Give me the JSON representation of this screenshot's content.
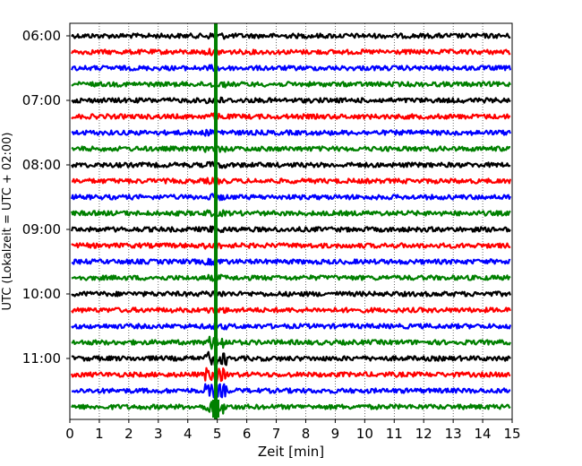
{
  "chart_data": {
    "type": "line",
    "xlabel": "Zeit  [min]",
    "ylabel": "UTC (Lokalzeit = UTC + 02:00)",
    "xlim": [
      0,
      15
    ],
    "x_ticks": [
      "0",
      "1",
      "2",
      "3",
      "4",
      "5",
      "6",
      "7",
      "8",
      "9",
      "10",
      "11",
      "12",
      "13",
      "14",
      "15"
    ],
    "y_ticks": [
      "06:00",
      "07:00",
      "08:00",
      "09:00",
      "10:00",
      "11:00"
    ],
    "grid": "vertical dotted",
    "trace_interval_min": 15,
    "first_trace": "06:00",
    "colors": [
      "#000000",
      "#ff0000",
      "#0000ff",
      "#008000"
    ],
    "traces": [
      {
        "start": "06:00",
        "color": "#000000"
      },
      {
        "start": "06:15",
        "color": "#ff0000"
      },
      {
        "start": "06:30",
        "color": "#0000ff"
      },
      {
        "start": "06:45",
        "color": "#008000"
      },
      {
        "start": "07:00",
        "color": "#000000"
      },
      {
        "start": "07:15",
        "color": "#ff0000"
      },
      {
        "start": "07:30",
        "color": "#0000ff"
      },
      {
        "start": "07:45",
        "color": "#008000"
      },
      {
        "start": "08:00",
        "color": "#000000"
      },
      {
        "start": "08:15",
        "color": "#ff0000"
      },
      {
        "start": "08:30",
        "color": "#0000ff"
      },
      {
        "start": "08:45",
        "color": "#008000"
      },
      {
        "start": "09:00",
        "color": "#000000"
      },
      {
        "start": "09:15",
        "color": "#ff0000"
      },
      {
        "start": "09:30",
        "color": "#0000ff"
      },
      {
        "start": "09:45",
        "color": "#008000"
      },
      {
        "start": "10:00",
        "color": "#000000"
      },
      {
        "start": "10:15",
        "color": "#ff0000"
      },
      {
        "start": "10:30",
        "color": "#0000ff"
      },
      {
        "start": "10:45",
        "color": "#008000"
      },
      {
        "start": "11:00",
        "color": "#000000"
      },
      {
        "start": "11:15",
        "color": "#ff0000"
      },
      {
        "start": "11:30",
        "color": "#0000ff"
      },
      {
        "start": "11:45",
        "color": "#008000"
      }
    ],
    "event": {
      "x_min": 4.95,
      "color": "#008000"
    }
  }
}
